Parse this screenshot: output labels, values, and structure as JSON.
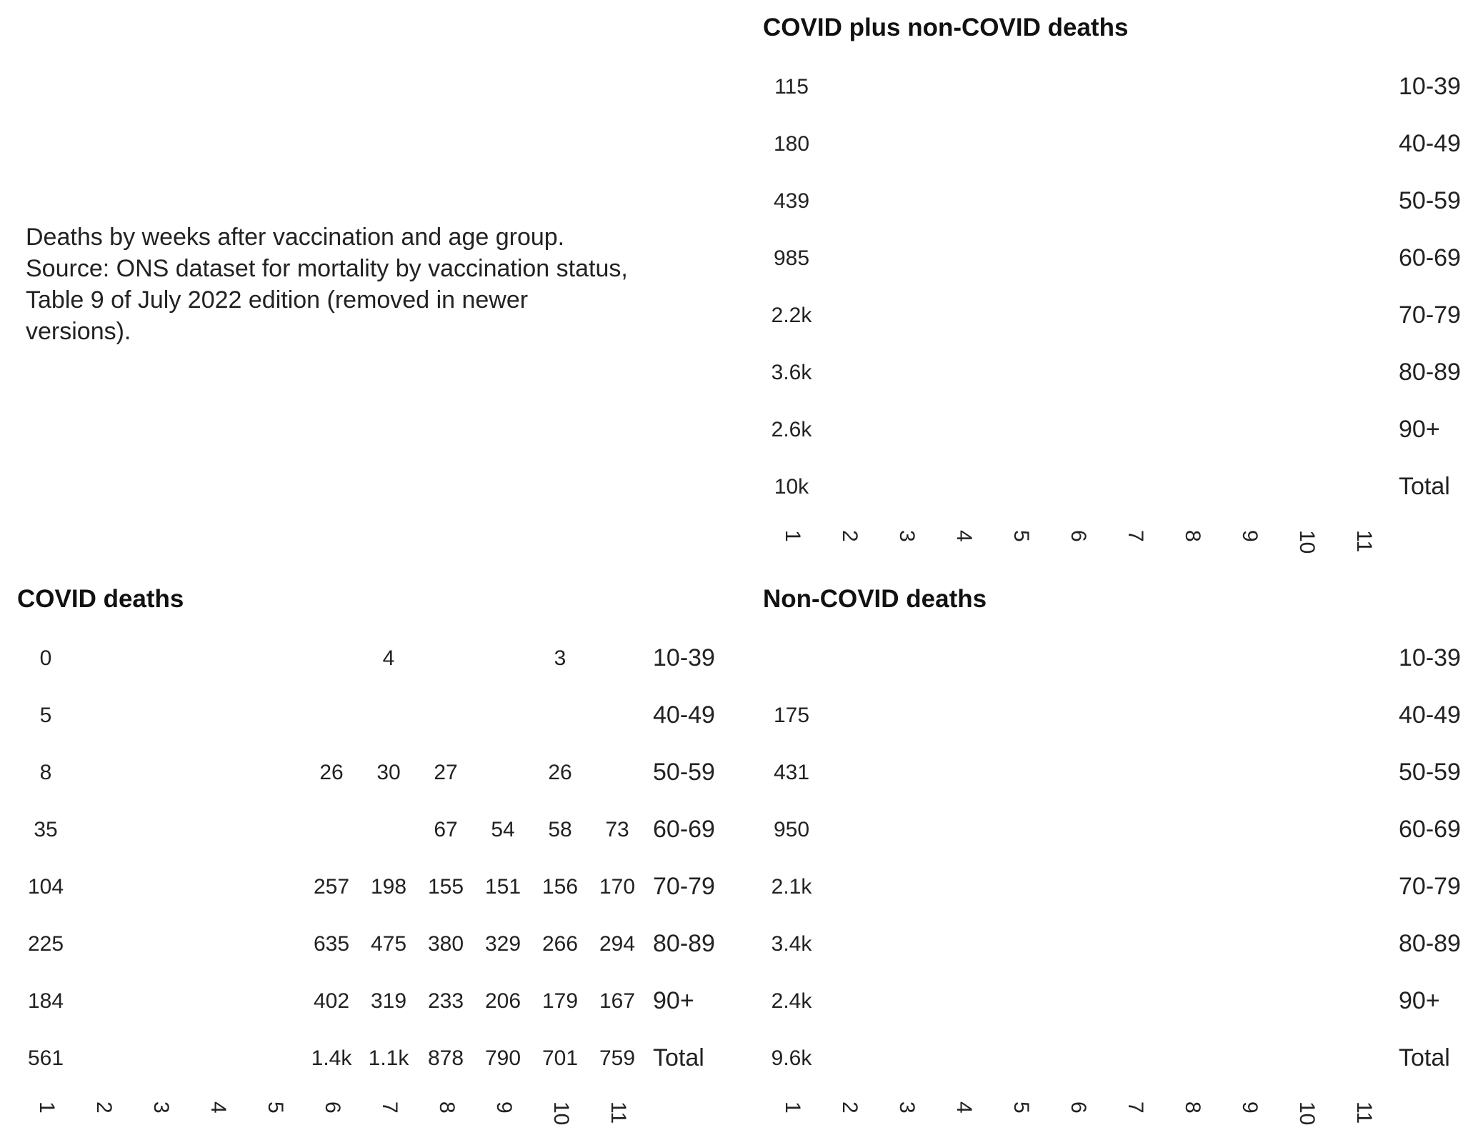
{
  "caption": {
    "lines": [
      "Deaths by weeks after vaccination and age group.",
      "Source: ONS dataset for mortality by vaccination status,",
      "Table 9 of July 2022 edition (removed in newer",
      "versions)."
    ]
  },
  "chart_data": [
    {
      "type": "table",
      "title": "COVID plus non-COVID deaths",
      "rows": [
        "10-39",
        "40-49",
        "50-59",
        "60-69",
        "70-79",
        "80-89",
        "90+",
        "Total"
      ],
      "columns": [
        "1",
        "2",
        "3",
        "4",
        "5",
        "6",
        "7",
        "8",
        "9",
        "10",
        "11"
      ],
      "cells": [
        [
          "115",
          "",
          "",
          "",
          "",
          "",
          "",
          "",
          "",
          "",
          ""
        ],
        [
          "180",
          "",
          "",
          "",
          "",
          "",
          "",
          "",
          "",
          "",
          ""
        ],
        [
          "439",
          "",
          "",
          "",
          "",
          "",
          "",
          "",
          "",
          "",
          ""
        ],
        [
          "985",
          "",
          "",
          "",
          "",
          "",
          "",
          "",
          "",
          "",
          ""
        ],
        [
          "2.2k",
          "",
          "",
          "",
          "",
          "",
          "",
          "",
          "",
          "",
          ""
        ],
        [
          "3.6k",
          "",
          "",
          "",
          "",
          "",
          "",
          "",
          "",
          "",
          ""
        ],
        [
          "2.6k",
          "",
          "",
          "",
          "",
          "",
          "",
          "",
          "",
          "",
          ""
        ],
        [
          "10k",
          "",
          "",
          "",
          "",
          "",
          "",
          "",
          "",
          "",
          ""
        ]
      ]
    },
    {
      "type": "table",
      "title": "COVID deaths",
      "rows": [
        "10-39",
        "40-49",
        "50-59",
        "60-69",
        "70-79",
        "80-89",
        "90+",
        "Total"
      ],
      "columns": [
        "1",
        "2",
        "3",
        "4",
        "5",
        "6",
        "7",
        "8",
        "9",
        "10",
        "11"
      ],
      "cells": [
        [
          "0",
          "",
          "",
          "",
          "",
          "",
          "4",
          "",
          "",
          "3",
          ""
        ],
        [
          "5",
          "",
          "",
          "",
          "",
          "",
          "",
          "",
          "",
          "",
          ""
        ],
        [
          "8",
          "",
          "",
          "",
          "",
          "26",
          "30",
          "27",
          "",
          "26",
          ""
        ],
        [
          "35",
          "",
          "",
          "",
          "",
          "",
          "",
          "67",
          "54",
          "58",
          "73"
        ],
        [
          "104",
          "",
          "",
          "",
          "",
          "257",
          "198",
          "155",
          "151",
          "156",
          "170"
        ],
        [
          "225",
          "",
          "",
          "",
          "",
          "635",
          "475",
          "380",
          "329",
          "266",
          "294"
        ],
        [
          "184",
          "",
          "",
          "",
          "",
          "402",
          "319",
          "233",
          "206",
          "179",
          "167"
        ],
        [
          "561",
          "",
          "",
          "",
          "",
          "1.4k",
          "1.1k",
          "878",
          "790",
          "701",
          "759"
        ]
      ]
    },
    {
      "type": "table",
      "title": "Non-COVID deaths",
      "rows": [
        "10-39",
        "40-49",
        "50-59",
        "60-69",
        "70-79",
        "80-89",
        "90+",
        "Total"
      ],
      "columns": [
        "1",
        "2",
        "3",
        "4",
        "5",
        "6",
        "7",
        "8",
        "9",
        "10",
        "11"
      ],
      "cells": [
        [
          "",
          "",
          "",
          "",
          "",
          "",
          "",
          "",
          "",
          "",
          ""
        ],
        [
          "175",
          "",
          "",
          "",
          "",
          "",
          "",
          "",
          "",
          "",
          ""
        ],
        [
          "431",
          "",
          "",
          "",
          "",
          "",
          "",
          "",
          "",
          "",
          ""
        ],
        [
          "950",
          "",
          "",
          "",
          "",
          "",
          "",
          "",
          "",
          "",
          ""
        ],
        [
          "2.1k",
          "",
          "",
          "",
          "",
          "",
          "",
          "",
          "",
          "",
          ""
        ],
        [
          "3.4k",
          "",
          "",
          "",
          "",
          "",
          "",
          "",
          "",
          "",
          ""
        ],
        [
          "2.4k",
          "",
          "",
          "",
          "",
          "",
          "",
          "",
          "",
          "",
          ""
        ],
        [
          "9.6k",
          "",
          "",
          "",
          "",
          "",
          "",
          "",
          "",
          "",
          ""
        ]
      ]
    }
  ]
}
